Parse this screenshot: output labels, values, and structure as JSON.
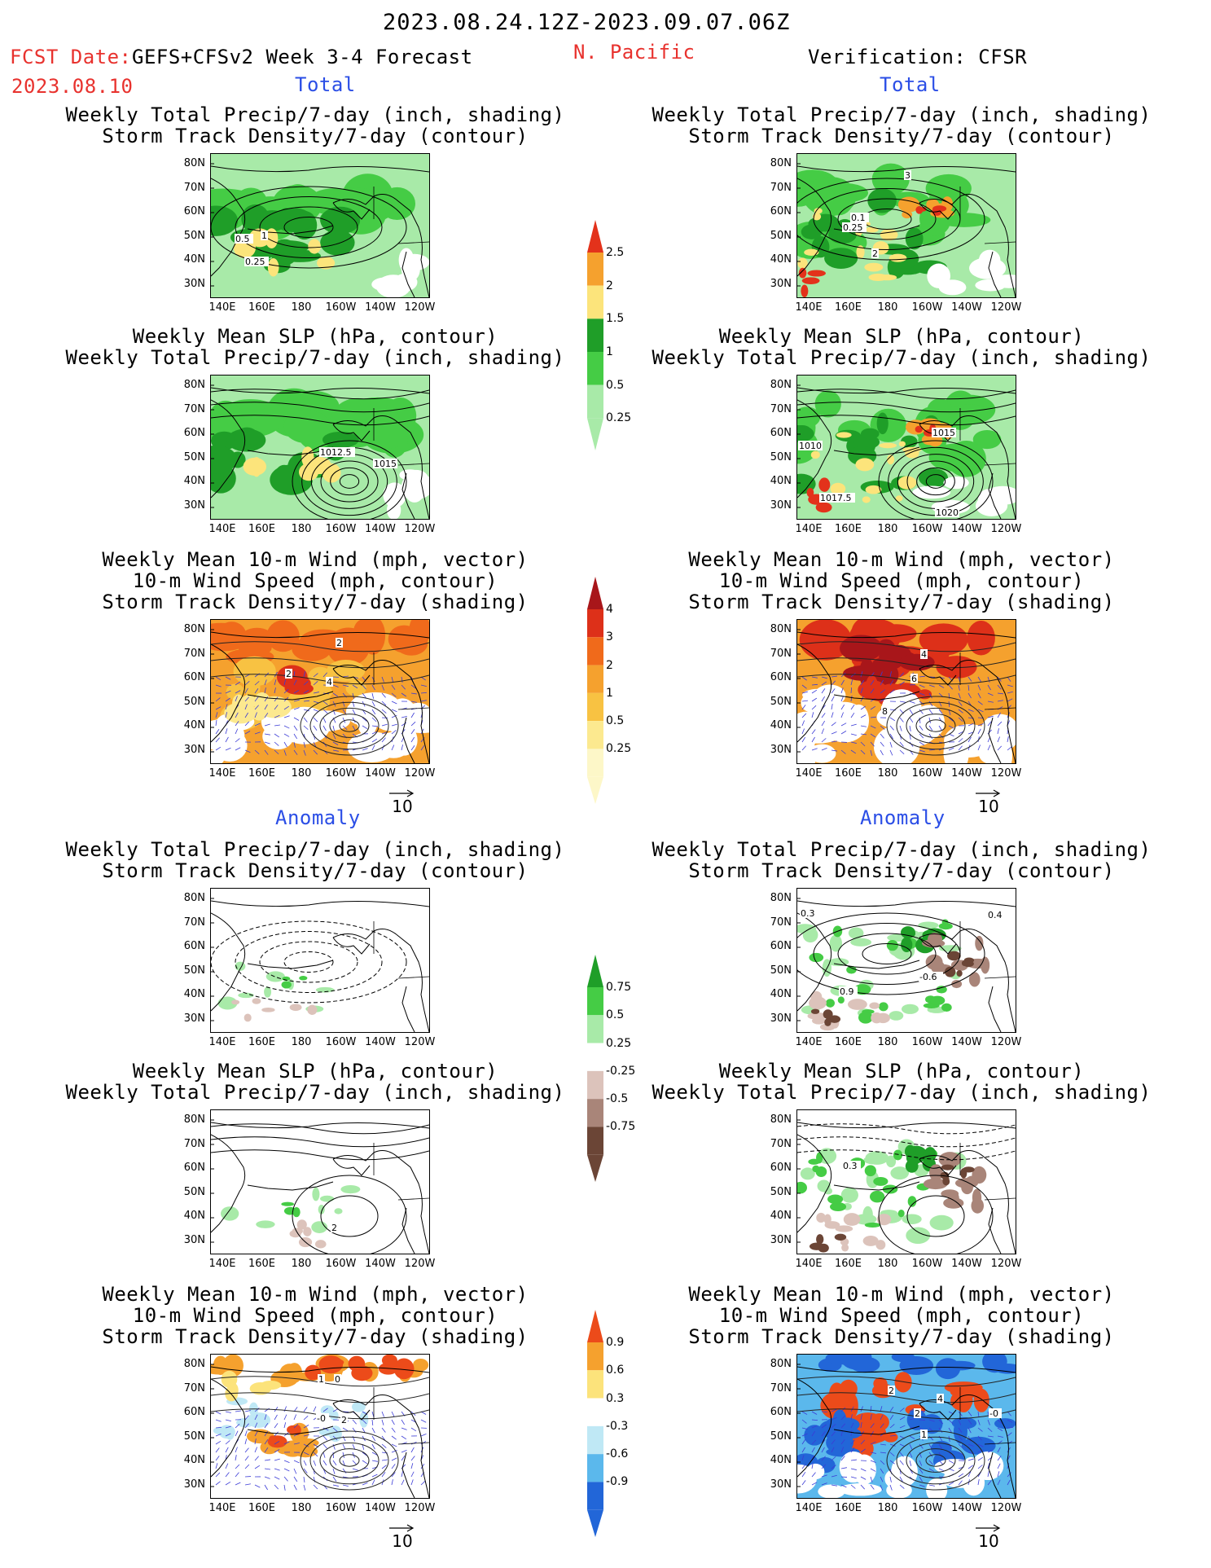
{
  "header": {
    "date_range": "2023.08.24.12Z-2023.09.07.06Z",
    "fcst_label": "FCST Date:",
    "fcst_date": "2023.08.10",
    "model": "GEFS+CFSv2 Week 3-4 Forecast",
    "region": "N. Pacific",
    "verification": "Verification: CFSR"
  },
  "sections": {
    "total": "Total",
    "anomaly": "Anomaly"
  },
  "panel_titles": {
    "precip_track": [
      "Weekly Total Precip/7-day (inch, shading)",
      "Storm Track Density/7-day (contour)"
    ],
    "slp_precip": [
      "Weekly Mean SLP (hPa, contour)",
      "Weekly Total Precip/7-day (inch, shading)"
    ],
    "wind_track": [
      "Weekly Mean 10-m Wind (mph, vector)",
      "10-m Wind Speed (mph, contour)",
      "Storm Track Density/7-day (shading)"
    ]
  },
  "axes": {
    "lat_ticks": [
      "80N",
      "70N",
      "60N",
      "50N",
      "40N",
      "30N"
    ],
    "lon_ticks": [
      "140E",
      "160E",
      "180",
      "160W",
      "140W",
      "120W"
    ]
  },
  "vector_reference": "10",
  "colorbars": {
    "precip_total": {
      "labels": [
        "2.5",
        "2",
        "1.5",
        "1",
        "0.5",
        "0.25"
      ],
      "colors": [
        "#e3321b",
        "#f5a12e",
        "#fce47b",
        "#1f9e28",
        "#45cc45",
        "#a8eaa8"
      ]
    },
    "track_total": {
      "labels": [
        "4",
        "3",
        "2",
        "1",
        "0.5",
        "0.25"
      ],
      "colors": [
        "#a8161a",
        "#dd3019",
        "#f06a1b",
        "#f5a12e",
        "#f8c242",
        "#fce98f",
        "#fdf7c8"
      ]
    },
    "precip_anom": {
      "labels": [
        "0.75",
        "0.5",
        "0.25",
        "-0.25",
        "-0.5",
        "-0.75"
      ],
      "colors": [
        "#1f9e28",
        "#45cc45",
        "#a8eaa8",
        "#ffffff",
        "#dcc3bb",
        "#a98579",
        "#6b4536"
      ]
    },
    "track_anom": {
      "labels": [
        "0.9",
        "0.6",
        "0.3",
        "-0.3",
        "-0.6",
        "-0.9"
      ],
      "colors": [
        "#ec4b1a",
        "#f5a12e",
        "#fce37b",
        "#ffffff",
        "#bfe8f5",
        "#5bb8ec",
        "#2266d8"
      ]
    }
  },
  "map_labels": {
    "fc_precip_track": [
      "0.5",
      "1",
      "0.25"
    ],
    "fc_slp_precip": [
      "1012.5",
      "1015"
    ],
    "fc_wind_track": [
      "2",
      "2",
      "4"
    ],
    "ob_precip_track": [
      "3",
      "0.1",
      "0.25",
      "2"
    ],
    "ob_slp_precip": [
      "1015",
      "1010",
      "1017.5",
      "1020"
    ],
    "ob_wind_track": [
      "4",
      "6",
      "8"
    ],
    "fa_slp_precip": [
      "2"
    ],
    "fa_wind_track": [
      "1",
      "0",
      "-0",
      "2"
    ],
    "oa_precip_track": [
      "0.3",
      "-0.6",
      "0.9",
      "0.4"
    ],
    "oa_slp_precip": [
      "0.3"
    ],
    "oa_wind_track": [
      "2",
      "4",
      "2",
      "1",
      "-0"
    ]
  }
}
